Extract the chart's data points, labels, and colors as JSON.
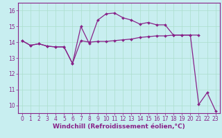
{
  "xlabel": "Windchill (Refroidissement éolien,°C)",
  "background_color": "#c8eef0",
  "line_color": "#882288",
  "xlim": [
    -0.5,
    23.5
  ],
  "ylim": [
    9.5,
    16.5
  ],
  "yticks": [
    10,
    11,
    12,
    13,
    14,
    15,
    16
  ],
  "xticks": [
    0,
    1,
    2,
    3,
    4,
    5,
    6,
    7,
    8,
    9,
    10,
    11,
    12,
    13,
    14,
    15,
    16,
    17,
    18,
    19,
    20,
    21,
    22,
    23
  ],
  "line1_x": [
    0,
    1,
    2,
    3,
    4,
    5,
    6,
    7,
    8,
    9,
    10,
    11,
    12,
    13,
    14,
    15,
    16,
    17,
    18,
    19,
    20,
    21,
    22,
    23
  ],
  "line1_y": [
    14.1,
    13.8,
    13.9,
    13.75,
    13.7,
    13.7,
    12.65,
    14.1,
    14.0,
    14.05,
    14.05,
    14.1,
    14.15,
    14.2,
    14.3,
    14.35,
    14.4,
    14.4,
    14.45,
    14.45,
    14.45,
    10.05,
    10.8,
    9.65
  ],
  "line2_x": [
    0,
    1,
    2,
    3,
    4,
    5,
    6,
    7,
    8,
    9,
    10,
    11,
    12,
    13,
    14,
    15,
    16,
    17,
    18,
    19,
    20,
    21
  ],
  "line2_y": [
    14.1,
    13.8,
    13.9,
    13.75,
    13.7,
    13.7,
    12.65,
    15.0,
    13.9,
    15.4,
    15.8,
    15.85,
    15.55,
    15.4,
    15.15,
    15.25,
    15.1,
    15.1,
    14.45,
    14.45,
    14.45,
    14.45
  ],
  "grid_color": "#aadecc",
  "tick_fontsize": 5.5,
  "xlabel_fontsize": 6.5
}
